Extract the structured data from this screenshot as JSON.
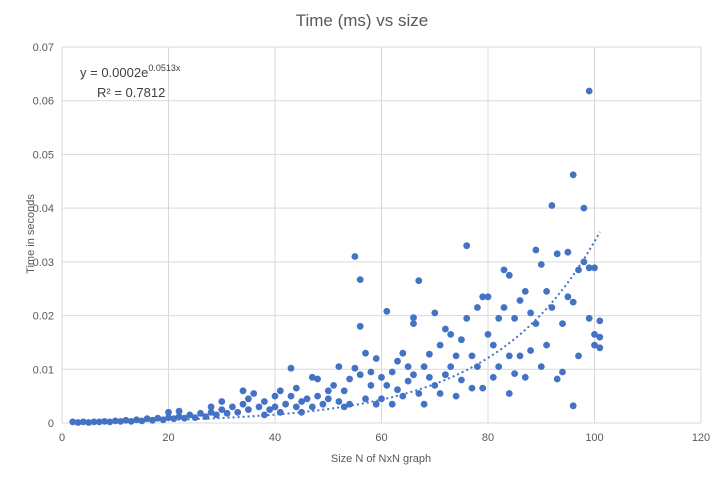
{
  "chart_data": {
    "type": "scatter",
    "title": "Time (ms) vs size",
    "xlabel": "Size N of NxN graph",
    "ylabel": "Time in seconds",
    "xlim": [
      0,
      120
    ],
    "ylim": [
      0,
      0.07
    ],
    "x_ticks": [
      "0",
      "20",
      "40",
      "60",
      "80",
      "100",
      "120"
    ],
    "y_ticks": [
      "0",
      "0.01",
      "0.02",
      "0.03",
      "0.04",
      "0.05",
      "0.06",
      "0.07"
    ],
    "grid": true,
    "legend": "none",
    "marker_color": "#4472c4",
    "trendline": {
      "type": "exponential",
      "a": 0.0002,
      "b": 0.0513,
      "equation_prefix": "y = 0.0002e",
      "equation_exponent": "0.0513x",
      "r2_label": "R² = 0.7812",
      "x_range": [
        2,
        101
      ]
    },
    "points": [
      [
        2,
        0.0002
      ],
      [
        3,
        0.0001
      ],
      [
        4,
        0.0002
      ],
      [
        5,
        0.0001
      ],
      [
        6,
        0.0002
      ],
      [
        7,
        0.0002
      ],
      [
        8,
        0.0003
      ],
      [
        9,
        0.0002
      ],
      [
        10,
        0.0004
      ],
      [
        11,
        0.0003
      ],
      [
        12,
        0.0005
      ],
      [
        13,
        0.0003
      ],
      [
        14,
        0.0006
      ],
      [
        15,
        0.0004
      ],
      [
        16,
        0.0008
      ],
      [
        17,
        0.0005
      ],
      [
        18,
        0.0009
      ],
      [
        19,
        0.0006
      ],
      [
        20,
        0.001
      ],
      [
        20,
        0.002
      ],
      [
        21,
        0.0008
      ],
      [
        22,
        0.0012
      ],
      [
        22,
        0.0022
      ],
      [
        23,
        0.0009
      ],
      [
        24,
        0.0015
      ],
      [
        25,
        0.001
      ],
      [
        26,
        0.0018
      ],
      [
        27,
        0.0012
      ],
      [
        28,
        0.002
      ],
      [
        28,
        0.003
      ],
      [
        29,
        0.0015
      ],
      [
        30,
        0.0025
      ],
      [
        30,
        0.004
      ],
      [
        31,
        0.0018
      ],
      [
        32,
        0.003
      ],
      [
        33,
        0.002
      ],
      [
        34,
        0.0035
      ],
      [
        34,
        0.006
      ],
      [
        35,
        0.0025
      ],
      [
        35,
        0.0045
      ],
      [
        36,
        0.0055
      ],
      [
        37,
        0.003
      ],
      [
        38,
        0.004
      ],
      [
        38,
        0.0015
      ],
      [
        39,
        0.0025
      ],
      [
        40,
        0.003
      ],
      [
        40,
        0.005
      ],
      [
        41,
        0.002
      ],
      [
        41,
        0.006
      ],
      [
        42,
        0.0035
      ],
      [
        43,
        0.005
      ],
      [
        43,
        0.0102
      ],
      [
        44,
        0.003
      ],
      [
        44,
        0.0065
      ],
      [
        45,
        0.004
      ],
      [
        45,
        0.002
      ],
      [
        46,
        0.0045
      ],
      [
        47,
        0.0085
      ],
      [
        47,
        0.003
      ],
      [
        48,
        0.005
      ],
      [
        48,
        0.0082
      ],
      [
        49,
        0.0035
      ],
      [
        50,
        0.006
      ],
      [
        50,
        0.0045
      ],
      [
        51,
        0.007
      ],
      [
        52,
        0.004
      ],
      [
        52,
        0.0105
      ],
      [
        53,
        0.006
      ],
      [
        53,
        0.003
      ],
      [
        54,
        0.0082
      ],
      [
        54,
        0.0035
      ],
      [
        55,
        0.0102
      ],
      [
        55,
        0.031
      ],
      [
        56,
        0.0267
      ],
      [
        56,
        0.018
      ],
      [
        56,
        0.009
      ],
      [
        57,
        0.013
      ],
      [
        57,
        0.0045
      ],
      [
        58,
        0.007
      ],
      [
        58,
        0.0095
      ],
      [
        59,
        0.0035
      ],
      [
        59,
        0.012
      ],
      [
        60,
        0.0085
      ],
      [
        60,
        0.0045
      ],
      [
        61,
        0.0208
      ],
      [
        61,
        0.007
      ],
      [
        62,
        0.0095
      ],
      [
        62,
        0.0035
      ],
      [
        63,
        0.0115
      ],
      [
        63,
        0.0062
      ],
      [
        64,
        0.013
      ],
      [
        64,
        0.005
      ],
      [
        65,
        0.0105
      ],
      [
        65,
        0.0078
      ],
      [
        66,
        0.0196
      ],
      [
        66,
        0.0185
      ],
      [
        66,
        0.009
      ],
      [
        67,
        0.0265
      ],
      [
        67,
        0.0055
      ],
      [
        68,
        0.0105
      ],
      [
        68,
        0.0035
      ],
      [
        69,
        0.0128
      ],
      [
        69,
        0.0085
      ],
      [
        70,
        0.0205
      ],
      [
        70,
        0.007
      ],
      [
        71,
        0.0145
      ],
      [
        71,
        0.0055
      ],
      [
        72,
        0.0175
      ],
      [
        72,
        0.009
      ],
      [
        73,
        0.0165
      ],
      [
        73,
        0.0105
      ],
      [
        74,
        0.0125
      ],
      [
        74,
        0.005
      ],
      [
        75,
        0.0155
      ],
      [
        75,
        0.008
      ],
      [
        76,
        0.033
      ],
      [
        76,
        0.0195
      ],
      [
        77,
        0.0125
      ],
      [
        77,
        0.0065
      ],
      [
        78,
        0.0215
      ],
      [
        78,
        0.0105
      ],
      [
        79,
        0.0235
      ],
      [
        79,
        0.0065
      ],
      [
        80,
        0.0235
      ],
      [
        80,
        0.0165
      ],
      [
        81,
        0.0145
      ],
      [
        81,
        0.0085
      ],
      [
        82,
        0.0195
      ],
      [
        82,
        0.0105
      ],
      [
        83,
        0.0285
      ],
      [
        83,
        0.0215
      ],
      [
        84,
        0.0275
      ],
      [
        84,
        0.0125
      ],
      [
        84,
        0.0055
      ],
      [
        85,
        0.0195
      ],
      [
        85,
        0.0092
      ],
      [
        86,
        0.0228
      ],
      [
        86,
        0.0125
      ],
      [
        87,
        0.0245
      ],
      [
        87,
        0.0085
      ],
      [
        88,
        0.0205
      ],
      [
        88,
        0.0135
      ],
      [
        89,
        0.0322
      ],
      [
        89,
        0.0185
      ],
      [
        90,
        0.0295
      ],
      [
        90,
        0.0105
      ],
      [
        91,
        0.0245
      ],
      [
        91,
        0.0145
      ],
      [
        92,
        0.0405
      ],
      [
        92,
        0.0215
      ],
      [
        93,
        0.0315
      ],
      [
        93,
        0.0082
      ],
      [
        94,
        0.0185
      ],
      [
        94,
        0.0095
      ],
      [
        95,
        0.0318
      ],
      [
        95,
        0.0235
      ],
      [
        96,
        0.0462
      ],
      [
        96,
        0.0225
      ],
      [
        96,
        0.0032
      ],
      [
        97,
        0.0285
      ],
      [
        97,
        0.0125
      ],
      [
        98,
        0.04
      ],
      [
        98,
        0.03
      ],
      [
        99,
        0.0618
      ],
      [
        99,
        0.0289
      ],
      [
        99,
        0.0195
      ],
      [
        100,
        0.0289
      ],
      [
        100,
        0.0165
      ],
      [
        100,
        0.0145
      ],
      [
        101,
        0.019
      ],
      [
        101,
        0.016
      ],
      [
        101,
        0.014
      ]
    ]
  }
}
